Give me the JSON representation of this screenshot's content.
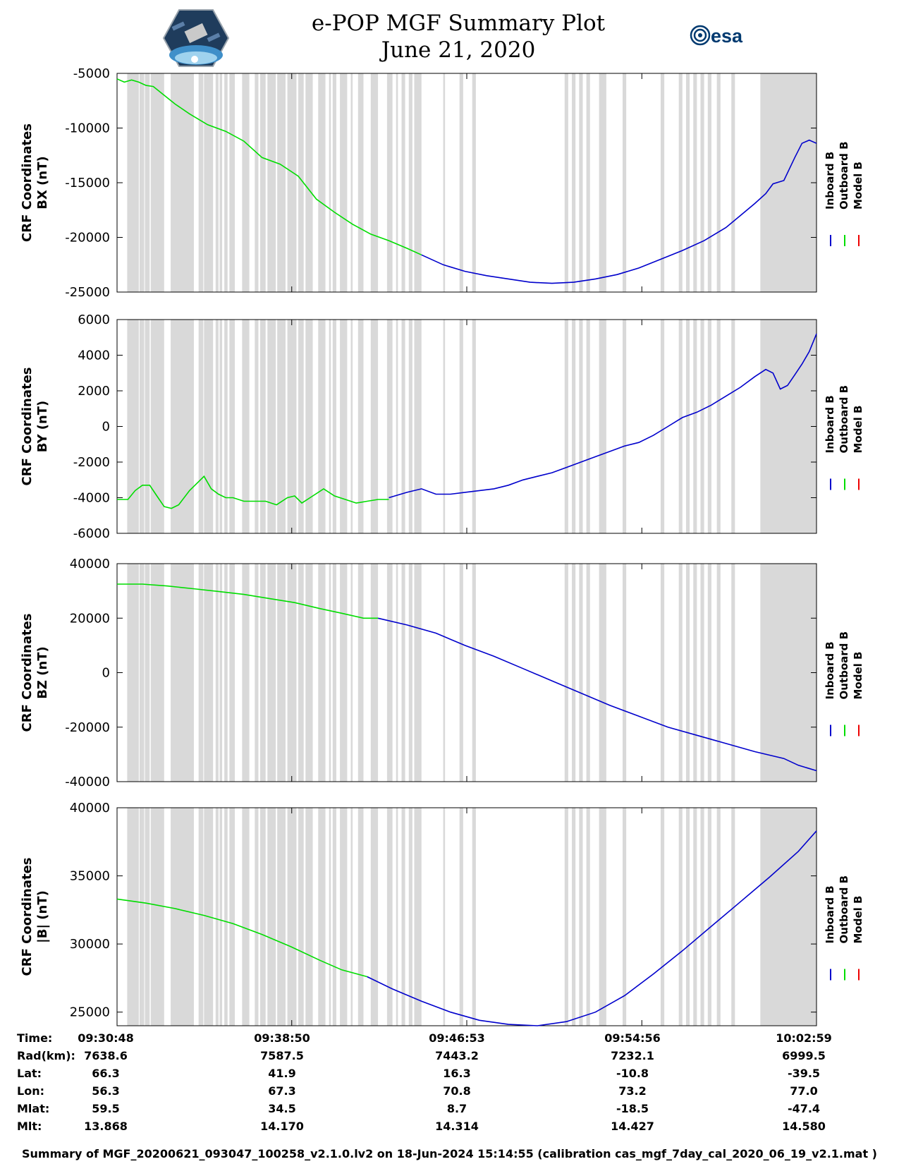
{
  "header": {
    "title_line1": "e-POP MGF Summary Plot",
    "title_line2": "June 21, 2020",
    "logo_left_name": "e-POP CASSIOPE mission logo",
    "logo_right_text": "esa"
  },
  "chart_data": [
    {
      "type": "line",
      "ylabel_line1": "CRF Coordinates",
      "ylabel_line2": "BX (nT)",
      "ylim": [
        -25000,
        -5000
      ],
      "yticks": [
        -25000,
        -20000,
        -15000,
        -10000,
        -5000
      ],
      "ytick_labels": [
        "-25000",
        "-20000",
        "-15000",
        "-10000",
        "-5000"
      ],
      "xlim": [
        0,
        1930
      ],
      "series": [
        {
          "name": "Outboard B",
          "color": "#00dd00",
          "x": [
            0,
            20,
            40,
            60,
            80,
            100,
            130,
            160,
            200,
            250,
            300,
            350,
            400,
            450,
            500,
            550,
            600,
            650,
            700,
            750,
            800,
            840
          ],
          "y": [
            -5500,
            -5800,
            -5600,
            -5800,
            -6100,
            -6200,
            -7000,
            -7800,
            -8700,
            -9700,
            -10300,
            -11200,
            -12700,
            -13300,
            -14400,
            -16500,
            -17700,
            -18800,
            -19700,
            -20300,
            -21000,
            -21600
          ]
        },
        {
          "name": "Inboard B",
          "color": "#0000cc",
          "x": [
            840,
            900,
            960,
            1020,
            1080,
            1140,
            1200,
            1260,
            1320,
            1380,
            1440,
            1500,
            1560,
            1620,
            1680,
            1720,
            1760,
            1790,
            1810,
            1840,
            1870,
            1890,
            1910,
            1930
          ],
          "y": [
            -21600,
            -22500,
            -23100,
            -23500,
            -23800,
            -24100,
            -24200,
            -24100,
            -23800,
            -23400,
            -22800,
            -22000,
            -21200,
            -20300,
            -19100,
            -18000,
            -16900,
            -16000,
            -15100,
            -14800,
            -12700,
            -11400,
            -11100,
            -11400
          ]
        },
        {
          "name": "Model B",
          "color": "#ee0000",
          "x": [],
          "y": []
        }
      ]
    },
    {
      "type": "line",
      "ylabel_line1": "CRF Coordinates",
      "ylabel_line2": "BY (nT)",
      "ylim": [
        -6000,
        6000
      ],
      "yticks": [
        -6000,
        -4000,
        -2000,
        0,
        2000,
        4000,
        6000
      ],
      "ytick_labels": [
        "-6000",
        "-4000",
        "-2000",
        "0",
        "2000",
        "4000",
        "6000"
      ],
      "xlim": [
        0,
        1930
      ],
      "series": [
        {
          "name": "Outboard B",
          "color": "#00dd00",
          "x": [
            0,
            30,
            50,
            70,
            90,
            110,
            130,
            150,
            170,
            200,
            220,
            240,
            260,
            280,
            300,
            320,
            350,
            380,
            410,
            440,
            470,
            490,
            510,
            540,
            570,
            600,
            630,
            660,
            690,
            720,
            750
          ],
          "y": [
            -4100,
            -4100,
            -3600,
            -3300,
            -3300,
            -3900,
            -4500,
            -4600,
            -4400,
            -3600,
            -3200,
            -2800,
            -3500,
            -3800,
            -4000,
            -4000,
            -4200,
            -4200,
            -4200,
            -4400,
            -4000,
            -3900,
            -4300,
            -3900,
            -3500,
            -3900,
            -4100,
            -4300,
            -4200,
            -4100,
            -4100
          ]
        },
        {
          "name": "Inboard B",
          "color": "#0000cc",
          "x": [
            750,
            800,
            840,
            880,
            920,
            960,
            1000,
            1040,
            1080,
            1120,
            1160,
            1200,
            1240,
            1280,
            1320,
            1360,
            1400,
            1440,
            1480,
            1520,
            1560,
            1600,
            1640,
            1680,
            1720,
            1760,
            1790,
            1810,
            1830,
            1850,
            1870,
            1890,
            1910,
            1930
          ],
          "y": [
            -4000,
            -3700,
            -3500,
            -3800,
            -3800,
            -3700,
            -3600,
            -3500,
            -3300,
            -3000,
            -2800,
            -2600,
            -2300,
            -2000,
            -1700,
            -1400,
            -1100,
            -900,
            -500,
            0,
            500,
            800,
            1200,
            1700,
            2200,
            2800,
            3200,
            3000,
            2100,
            2300,
            2900,
            3500,
            4200,
            5200
          ]
        },
        {
          "name": "Model B",
          "color": "#ee0000",
          "x": [],
          "y": []
        }
      ]
    },
    {
      "type": "line",
      "ylabel_line1": "CRF Coordinates",
      "ylabel_line2": "BZ (nT)",
      "ylim": [
        -40000,
        40000
      ],
      "yticks": [
        -40000,
        -20000,
        0,
        20000,
        40000
      ],
      "ytick_labels": [
        "-40000",
        "-20000",
        "0",
        "20000",
        "40000"
      ],
      "xlim": [
        0,
        1930
      ],
      "series": [
        {
          "name": "Outboard B",
          "color": "#00dd00",
          "x": [
            0,
            70,
            140,
            210,
            280,
            350,
            420,
            490,
            560,
            620,
            680,
            720
          ],
          "y": [
            32500,
            32500,
            31800,
            30800,
            29800,
            28700,
            27200,
            25700,
            23500,
            21800,
            20000,
            20000
          ]
        },
        {
          "name": "Inboard B",
          "color": "#0000cc",
          "x": [
            720,
            800,
            880,
            960,
            1040,
            1120,
            1200,
            1280,
            1360,
            1440,
            1520,
            1600,
            1680,
            1760,
            1840,
            1880,
            1930
          ],
          "y": [
            20000,
            17500,
            14500,
            10000,
            6000,
            1500,
            -3000,
            -7500,
            -12000,
            -16000,
            -20000,
            -23000,
            -26000,
            -29000,
            -31500,
            -34000,
            -36000
          ]
        },
        {
          "name": "Model B",
          "color": "#ee0000",
          "x": [],
          "y": []
        }
      ]
    },
    {
      "type": "line",
      "ylabel_line1": "CRF Coordinates",
      "ylabel_line2": "|B| (nT)",
      "ylim": [
        24000,
        40000
      ],
      "yticks": [
        25000,
        30000,
        35000,
        40000
      ],
      "ytick_labels": [
        "25000",
        "30000",
        "35000",
        "40000"
      ],
      "xlim": [
        0,
        1930
      ],
      "series": [
        {
          "name": "Outboard B",
          "color": "#00dd00",
          "x": [
            0,
            80,
            160,
            240,
            320,
            400,
            480,
            560,
            620,
            690
          ],
          "y": [
            33300,
            33000,
            32600,
            32100,
            31500,
            30700,
            29800,
            28800,
            28100,
            27600
          ]
        },
        {
          "name": "Inboard B",
          "color": "#0000cc",
          "x": [
            690,
            760,
            840,
            920,
            1000,
            1080,
            1160,
            1240,
            1320,
            1400,
            1480,
            1560,
            1640,
            1720,
            1800,
            1880,
            1930
          ],
          "y": [
            27600,
            26700,
            25800,
            25000,
            24400,
            24100,
            24000,
            24300,
            25000,
            26200,
            27800,
            29500,
            31300,
            33100,
            34900,
            36800,
            38300
          ]
        },
        {
          "name": "Model B",
          "color": "#ee0000",
          "x": [],
          "y": []
        }
      ]
    }
  ],
  "gaps": [
    [
      28,
      60
    ],
    [
      62,
      75
    ],
    [
      77,
      90
    ],
    [
      93,
      130
    ],
    [
      148,
      212
    ],
    [
      225,
      238
    ],
    [
      240,
      265
    ],
    [
      272,
      280
    ],
    [
      283,
      290
    ],
    [
      296,
      305
    ],
    [
      310,
      325
    ],
    [
      345,
      365
    ],
    [
      380,
      390
    ],
    [
      395,
      410
    ],
    [
      415,
      438
    ],
    [
      442,
      465
    ],
    [
      470,
      495
    ],
    [
      500,
      515
    ],
    [
      520,
      540
    ],
    [
      555,
      575
    ],
    [
      585,
      590
    ],
    [
      595,
      605
    ],
    [
      615,
      635
    ],
    [
      645,
      650
    ],
    [
      665,
      680
    ],
    [
      700,
      720
    ],
    [
      745,
      760
    ],
    [
      770,
      775
    ],
    [
      785,
      795
    ],
    [
      805,
      815
    ],
    [
      820,
      840
    ],
    [
      900,
      905
    ],
    [
      945,
      955
    ],
    [
      980,
      990
    ],
    [
      1235,
      1245
    ],
    [
      1255,
      1265
    ],
    [
      1275,
      1285
    ],
    [
      1295,
      1305
    ],
    [
      1330,
      1350
    ],
    [
      1395,
      1405
    ],
    [
      1500,
      1510
    ],
    [
      1550,
      1560
    ],
    [
      1570,
      1580
    ],
    [
      1590,
      1600
    ],
    [
      1610,
      1620
    ],
    [
      1630,
      1640
    ],
    [
      1655,
      1665
    ],
    [
      1695,
      1705
    ],
    [
      1775,
      1930
    ]
  ],
  "legend": [
    "Inboard B",
    "Outboard B",
    "Model B"
  ],
  "legend_colors": [
    "#0000cc",
    "#00dd00",
    "#ee0000"
  ],
  "time_ticks": [
    0,
    482,
    965,
    1448,
    1930
  ],
  "info_table": {
    "labels": [
      "Time:",
      "Rad(km):",
      "Lat:",
      "Lon:",
      "Mlat:",
      "Mlt:"
    ],
    "columns": [
      [
        "09:30:48",
        "7638.6",
        "66.3",
        "56.3",
        "59.5",
        "13.868"
      ],
      [
        "09:38:50",
        "7587.5",
        "41.9",
        "67.3",
        "34.5",
        "14.170"
      ],
      [
        "09:46:53",
        "7443.2",
        "16.3",
        "70.8",
        "8.7",
        "14.314"
      ],
      [
        "09:54:56",
        "7232.1",
        "-10.8",
        "73.2",
        "-18.5",
        "14.427"
      ],
      [
        "10:02:59",
        "6999.5",
        "-39.5",
        "77.0",
        "-47.4",
        "14.580"
      ]
    ]
  },
  "footer": "Summary of MGF_20200621_093047_100258_v2.1.0.lv2 on 18-Jun-2024 15:14:55 (calibration cas_mgf_7day_cal_2020_06_19_v2.1.mat )"
}
